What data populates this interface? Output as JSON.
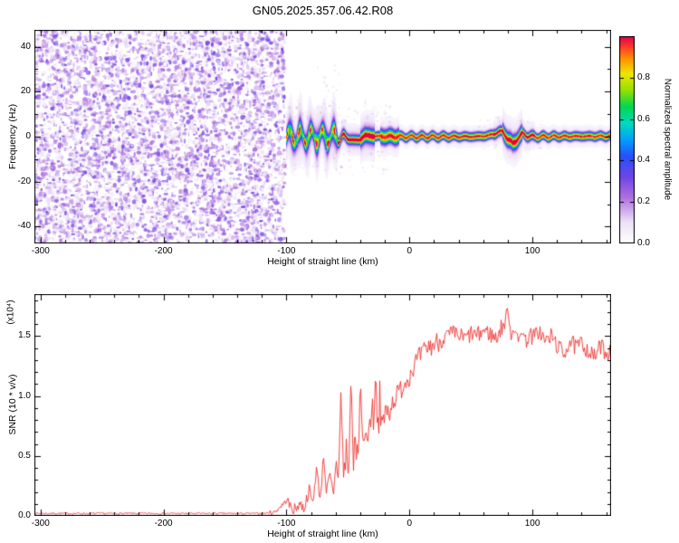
{
  "title": "GN05.2025.357.06.42.R08",
  "colors": {
    "snr_line": "#f03230",
    "axis": "#000000",
    "background": "#ffffff"
  },
  "colorbar": {
    "label": "Normalized spectral amplitude",
    "tick_labels": [
      "0.0",
      "0.2",
      "0.4",
      "0.6",
      "0.8"
    ],
    "tick_values": [
      0,
      0.2,
      0.4,
      0.6,
      0.8
    ],
    "range": [
      0,
      1
    ],
    "gradient": [
      {
        "t": 0.0,
        "c": "#ffffff"
      },
      {
        "t": 0.1,
        "c": "#eee2f8"
      },
      {
        "t": 0.22,
        "c": "#b070e0"
      },
      {
        "t": 0.32,
        "c": "#6e46e6"
      },
      {
        "t": 0.42,
        "c": "#2850fa"
      },
      {
        "t": 0.5,
        "c": "#00a0ff"
      },
      {
        "t": 0.58,
        "c": "#00dcbe"
      },
      {
        "t": 0.66,
        "c": "#00d750"
      },
      {
        "t": 0.74,
        "c": "#96e100"
      },
      {
        "t": 0.82,
        "c": "#f0e600"
      },
      {
        "t": 0.89,
        "c": "#ff9600"
      },
      {
        "t": 0.95,
        "c": "#ff3c28"
      },
      {
        "t": 1.0,
        "c": "#e10050"
      }
    ]
  },
  "chart_data": [
    {
      "type": "heatmap",
      "title": "",
      "xlabel": "Height of straight line (km)",
      "ylabel": "Frequency (Hz)",
      "xlim": [
        -305,
        164
      ],
      "ylim": [
        -47.5,
        47.5
      ],
      "xticks": [
        -300,
        -200,
        -100,
        0,
        100
      ],
      "xtick_labels": [
        "-300",
        "-200",
        "-100",
        "0",
        "100"
      ],
      "yticks": [
        -40,
        -20,
        0,
        20,
        40
      ],
      "ytick_labels": [
        "-40",
        "-20",
        "0",
        "20",
        "40"
      ],
      "regions": {
        "noise": {
          "x_range": [
            -305,
            -100
          ],
          "max_amplitude": 0.32,
          "description": "random purple speckle noise across all frequencies"
        },
        "signal": {
          "x_range": [
            -100,
            164
          ],
          "base_center_hz": {
            "x": [
              -100,
              -55,
              -50,
              -45,
              -40,
              -36,
              -30,
              -20,
              55,
              65,
              72,
              76,
              80,
              84,
              88,
              92,
              96,
              100,
              164
            ],
            "f": [
              0,
              0,
              -0.8,
              -1.8,
              -1.2,
              0.6,
              0.2,
              0,
              0,
              0.5,
              2.0,
              2.2,
              -1.0,
              -3.2,
              -0.8,
              1.2,
              0.4,
              0,
              0.2
            ]
          },
          "wiggle": {
            "amplitude_hz": 3.0,
            "period_km": 9,
            "taper_x": [
              -58,
              -50
            ],
            "min_amplitude_hz": 0.45
          },
          "core_amplitude": 0.95,
          "wiggle_core_amplitude": 0.62,
          "width_hz": 1.15,
          "wide_width_hz": 2.3,
          "blob_regions": [
            {
              "x0": -24,
              "x1": -8,
              "width_hz": 2.0
            },
            {
              "x0": -40,
              "x1": -28,
              "width_hz": 1.8
            },
            {
              "x0": 76,
              "x1": 92,
              "width_hz": 1.9
            }
          ]
        }
      }
    },
    {
      "type": "line",
      "title": "",
      "xlabel": "Height of straight line (km)",
      "ylabel": "SNR (10 * v/v)",
      "y_scale_label": "(x10⁴)",
      "xlim": [
        -305,
        164
      ],
      "ylim": [
        0,
        1.85
      ],
      "xticks": [
        -300,
        -200,
        -100,
        0,
        100
      ],
      "xtick_labels": [
        "-300",
        "-200",
        "-100",
        "0",
        "100"
      ],
      "yticks": [
        0,
        0.5,
        1.0,
        1.5
      ],
      "ytick_labels": [
        "0.0",
        "0.5",
        "1.0",
        "1.5"
      ],
      "series": [
        {
          "name": "SNR",
          "color": "#f03230",
          "x": [
            -305,
            -250,
            -200,
            -150,
            -120,
            -110,
            -104,
            -100,
            -97,
            -93,
            -90,
            -86,
            -82,
            -79,
            -76,
            -73,
            -70,
            -68,
            -65,
            -62,
            -60,
            -58,
            -56,
            -54,
            -52,
            -50,
            -48,
            -46,
            -44,
            -42,
            -40,
            -38,
            -36,
            -34,
            -32,
            -30,
            -28,
            -26,
            -24,
            -22,
            -20,
            -17,
            -14,
            -11,
            -8,
            -5,
            -2,
            0,
            3,
            6,
            10,
            14,
            18,
            22,
            26,
            30,
            35,
            40,
            45,
            50,
            55,
            60,
            65,
            70,
            75,
            78,
            80,
            82,
            85,
            88,
            91,
            94,
            97,
            100,
            105,
            110,
            115,
            120,
            125,
            130,
            135,
            140,
            145,
            150,
            155,
            160,
            164
          ],
          "y": [
            0.02,
            0.02,
            0.02,
            0.02,
            0.02,
            0.03,
            0.09,
            0.13,
            0.07,
            0.05,
            0.11,
            0.06,
            0.22,
            0.1,
            0.4,
            0.14,
            0.52,
            0.2,
            0.33,
            0.16,
            0.5,
            0.28,
            1.02,
            0.3,
            0.55,
            0.38,
            1.1,
            0.45,
            0.62,
            0.5,
            1.18,
            0.52,
            0.7,
            0.55,
            0.85,
            0.6,
            1.22,
            0.7,
            0.9,
            0.75,
            0.85,
            0.9,
            0.95,
            1.0,
            1.05,
            1.1,
            1.15,
            1.18,
            1.25,
            1.3,
            1.35,
            1.4,
            1.42,
            1.45,
            1.47,
            1.5,
            1.52,
            1.5,
            1.48,
            1.52,
            1.5,
            1.55,
            1.52,
            1.48,
            1.58,
            1.62,
            1.75,
            1.5,
            1.6,
            1.42,
            1.58,
            1.45,
            1.52,
            1.48,
            1.55,
            1.45,
            1.5,
            1.42,
            1.35,
            1.46,
            1.4,
            1.44,
            1.38,
            1.32,
            1.42,
            1.36,
            1.38
          ]
        }
      ]
    }
  ]
}
